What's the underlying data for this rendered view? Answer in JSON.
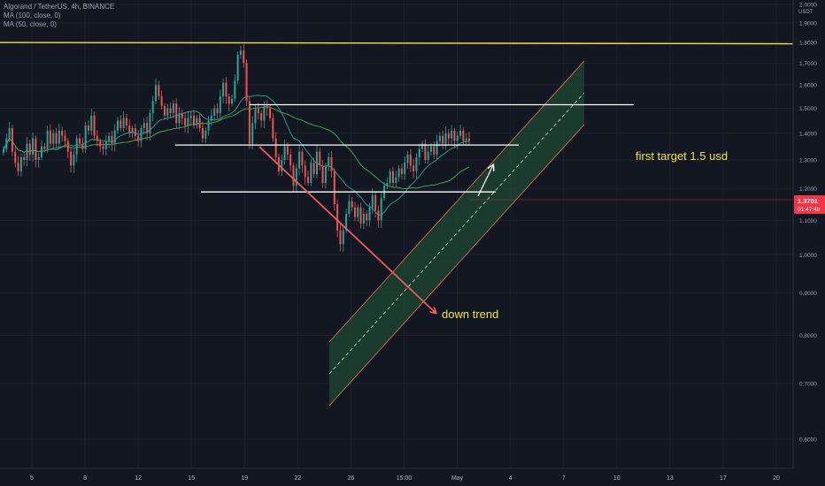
{
  "legend": {
    "symbol_line": "Algorand / TetherUS, 4h, BINANCE",
    "ma100_label": "MA (100, close, 0)",
    "ma50_label": "MA (50, close, 0)"
  },
  "colors": {
    "background": "#131722",
    "grid": "#1e2230",
    "up": "#26a69a",
    "down": "#ef5350",
    "ma100": "#26a69a",
    "ma50": "#4caf50",
    "resistance": "#f0e442",
    "levels": "#ffffff",
    "downtrend": "#f05b5b",
    "channel_fill": "#1f4a33",
    "channel_border": "#f0734a",
    "annotation_text": "#f0e442",
    "price_tag": "#f23645"
  },
  "chart_data": {
    "type": "candlestick",
    "y_axis": {
      "currency": "USDT",
      "ticks": [
        "2.0000",
        "1.9000",
        "1.8000",
        "1.7000",
        "1.6000",
        "1.5000",
        "1.4000",
        "1.3000",
        "1.2000",
        "1.1000",
        "1.0000",
        "0.9000",
        "0.8000",
        "0.7000",
        "0.6000"
      ],
      "scale": "log"
    },
    "x_axis": {
      "ticks": [
        "5",
        "8",
        "12",
        "15",
        "19",
        "22",
        "26",
        "15:00",
        "May",
        "4",
        "7",
        "10",
        "13",
        "17",
        "20"
      ]
    },
    "current_price": {
      "value": "1.3701",
      "countdown": "01:47:48"
    },
    "annotations": {
      "target_label": "first target 1.5 usd",
      "downtrend_label": "down trend"
    },
    "levels": {
      "resistance": 1.8,
      "target": 1.515,
      "support_upper": 1.355,
      "support_lower": 1.19
    },
    "closes": [
      1.34,
      1.38,
      1.42,
      1.33,
      1.29,
      1.26,
      1.31,
      1.3,
      1.36,
      1.32,
      1.38,
      1.3,
      1.31,
      1.35,
      1.34,
      1.41,
      1.36,
      1.4,
      1.36,
      1.41,
      1.39,
      1.37,
      1.33,
      1.28,
      1.32,
      1.38,
      1.36,
      1.34,
      1.43,
      1.41,
      1.47,
      1.39,
      1.37,
      1.35,
      1.34,
      1.37,
      1.39,
      1.36,
      1.41,
      1.45,
      1.42,
      1.46,
      1.43,
      1.4,
      1.42,
      1.39,
      1.37,
      1.42,
      1.44,
      1.4,
      1.48,
      1.53,
      1.6,
      1.55,
      1.51,
      1.47,
      1.5,
      1.48,
      1.52,
      1.44,
      1.48,
      1.46,
      1.43,
      1.46,
      1.47,
      1.43,
      1.46,
      1.42,
      1.38,
      1.41,
      1.45,
      1.47,
      1.5,
      1.48,
      1.55,
      1.61,
      1.55,
      1.52,
      1.54,
      1.62,
      1.74,
      1.76,
      1.7,
      1.53,
      1.36,
      1.44,
      1.5,
      1.48,
      1.45,
      1.51,
      1.5,
      1.46,
      1.38,
      1.31,
      1.26,
      1.3,
      1.35,
      1.32,
      1.28,
      1.21,
      1.27,
      1.33,
      1.28,
      1.24,
      1.22,
      1.29,
      1.25,
      1.33,
      1.28,
      1.22,
      1.28,
      1.31,
      1.26,
      1.15,
      1.07,
      1.03,
      1.07,
      1.12,
      1.16,
      1.14,
      1.11,
      1.14,
      1.09,
      1.12,
      1.1,
      1.14,
      1.18,
      1.13,
      1.1,
      1.17,
      1.21,
      1.22,
      1.26,
      1.22,
      1.24,
      1.27,
      1.25,
      1.29,
      1.32,
      1.28,
      1.26,
      1.31,
      1.34,
      1.36,
      1.3,
      1.33,
      1.35,
      1.32,
      1.37,
      1.39,
      1.36,
      1.4,
      1.38,
      1.41,
      1.37,
      1.39,
      1.41,
      1.37,
      1.38,
      1.37
    ]
  }
}
